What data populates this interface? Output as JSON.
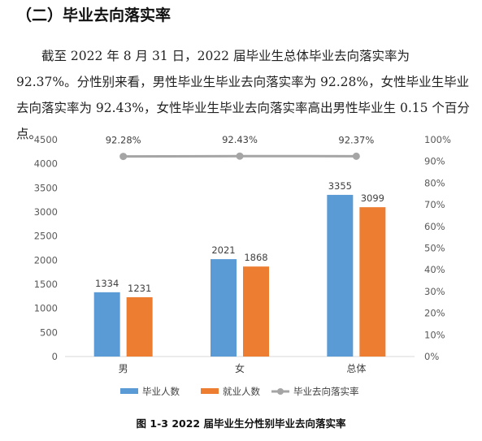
{
  "section": {
    "heading": "（二）毕业去向落实率"
  },
  "paragraph": {
    "text": "截至 2022 年 8 月 31 日，2022 届毕业生总体毕业去向落实率为 92.37%。分性别来看，男性毕业生毕业去向落实率为 92.28%，女性毕业生毕业去向落实率为 92.43%，女性毕业生毕业去向落实率高出男性毕业生 0.15 个百分点。"
  },
  "chart_data": {
    "type": "bar",
    "categories": [
      "男",
      "女",
      "总体"
    ],
    "series": [
      {
        "name": "毕业人数",
        "type": "bar",
        "axis": "left",
        "color": "#5B9BD5",
        "values": [
          1334,
          2021,
          3355
        ]
      },
      {
        "name": "就业人数",
        "type": "bar",
        "axis": "left",
        "color": "#ED7D31",
        "values": [
          1231,
          1868,
          3099
        ]
      },
      {
        "name": "毕业去向落实率",
        "type": "line",
        "axis": "right",
        "color": "#A5A5A5",
        "values": [
          92.28,
          92.43,
          92.37
        ],
        "labels": [
          "92.28%",
          "92.43%",
          "92.37%"
        ]
      }
    ],
    "ylim_left": [
      0,
      4500
    ],
    "yticks_left": [
      "0",
      "500",
      "1000",
      "1500",
      "2000",
      "2500",
      "3000",
      "3500",
      "4000",
      "4500"
    ],
    "ylim_right": [
      0,
      100
    ],
    "yticks_right": [
      "0%",
      "10%",
      "20%",
      "30%",
      "40%",
      "50%",
      "60%",
      "70%",
      "80%",
      "90%",
      "100%"
    ],
    "legend_position": "bottom",
    "grid": false
  },
  "caption": "图 1-3 2022 届毕业生分性别毕业去向落实率"
}
